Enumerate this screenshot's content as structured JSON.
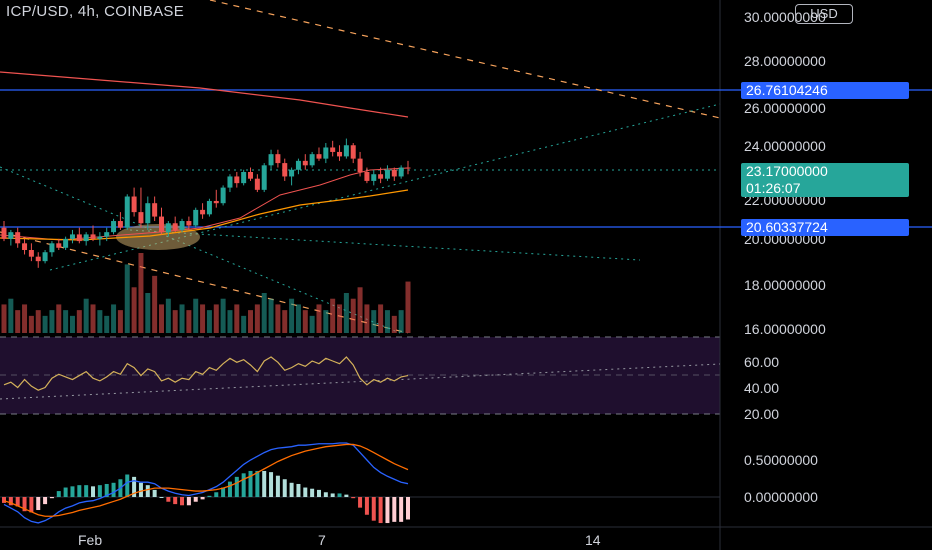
{
  "header": {
    "symbol": "ICP/USD, 4h, COINBASE",
    "currency": "USD"
  },
  "price_axis": {
    "ticks": [
      "30.00000000",
      "28.00000000",
      "26.00000000",
      "24.00000000",
      "22.00000000",
      "20.00000000",
      "18.00000000",
      "16.00000000"
    ]
  },
  "price_labels": {
    "upper_line": "26.76104246",
    "current_price": "23.17000000",
    "countdown": "01:26:07",
    "lower_line": "20.60337724"
  },
  "rsi_axis": {
    "ticks": [
      "60.00",
      "40.00",
      "20.00"
    ]
  },
  "macd_axis": {
    "ticks": [
      "0.50000000",
      "0.00000000"
    ]
  },
  "time_axis": {
    "ticks": [
      "Feb",
      "7",
      "14"
    ]
  },
  "colors": {
    "up": "#26a69a",
    "down": "#ef5350",
    "blue_line": "#2962ff",
    "rsi": "#d4b15a",
    "macd": "#2962ff",
    "signal": "#ff6d00",
    "rsi_band": "#1f0f2e"
  },
  "chart_data": {
    "type": "candlestick",
    "title": "ICP/USD, 4h, COINBASE",
    "ylim": [
      16,
      30
    ],
    "horizontal_levels": [
      26.76104246,
      20.60337724
    ],
    "current_price": 23.17,
    "candles": [
      {
        "o": 20.5,
        "h": 20.8,
        "l": 19.9,
        "c": 20.0
      },
      {
        "o": 20.0,
        "h": 20.4,
        "l": 19.7,
        "c": 20.3
      },
      {
        "o": 20.3,
        "h": 20.5,
        "l": 19.6,
        "c": 19.8
      },
      {
        "o": 19.8,
        "h": 20.0,
        "l": 19.3,
        "c": 19.5
      },
      {
        "o": 19.5,
        "h": 19.8,
        "l": 19.0,
        "c": 19.2
      },
      {
        "o": 19.2,
        "h": 19.4,
        "l": 18.7,
        "c": 19.0
      },
      {
        "o": 19.0,
        "h": 19.5,
        "l": 18.9,
        "c": 19.4
      },
      {
        "o": 19.4,
        "h": 19.9,
        "l": 19.2,
        "c": 19.8
      },
      {
        "o": 19.8,
        "h": 20.0,
        "l": 19.5,
        "c": 19.6
      },
      {
        "o": 19.6,
        "h": 20.1,
        "l": 19.5,
        "c": 20.0
      },
      {
        "o": 20.0,
        "h": 20.4,
        "l": 19.8,
        "c": 20.2
      },
      {
        "o": 20.2,
        "h": 20.5,
        "l": 19.8,
        "c": 19.9
      },
      {
        "o": 19.9,
        "h": 20.3,
        "l": 19.7,
        "c": 20.2
      },
      {
        "o": 20.2,
        "h": 20.6,
        "l": 19.9,
        "c": 20.0
      },
      {
        "o": 20.0,
        "h": 20.3,
        "l": 19.7,
        "c": 20.1
      },
      {
        "o": 20.1,
        "h": 20.5,
        "l": 19.9,
        "c": 20.3
      },
      {
        "o": 20.3,
        "h": 20.9,
        "l": 20.2,
        "c": 20.8
      },
      {
        "o": 20.8,
        "h": 21.2,
        "l": 20.4,
        "c": 20.5
      },
      {
        "o": 20.5,
        "h": 22.0,
        "l": 20.4,
        "c": 21.9
      },
      {
        "o": 21.9,
        "h": 22.3,
        "l": 21.0,
        "c": 21.2
      },
      {
        "o": 21.2,
        "h": 22.3,
        "l": 20.5,
        "c": 20.7
      },
      {
        "o": 20.7,
        "h": 21.9,
        "l": 20.4,
        "c": 21.6
      },
      {
        "o": 21.6,
        "h": 21.9,
        "l": 20.8,
        "c": 21.0
      },
      {
        "o": 21.0,
        "h": 21.4,
        "l": 20.2,
        "c": 20.3
      },
      {
        "o": 20.3,
        "h": 20.8,
        "l": 20.1,
        "c": 20.7
      },
      {
        "o": 20.7,
        "h": 21.0,
        "l": 20.3,
        "c": 20.4
      },
      {
        "o": 20.4,
        "h": 20.9,
        "l": 20.3,
        "c": 20.8
      },
      {
        "o": 20.8,
        "h": 21.0,
        "l": 20.4,
        "c": 20.6
      },
      {
        "o": 20.6,
        "h": 21.4,
        "l": 20.5,
        "c": 21.3
      },
      {
        "o": 21.3,
        "h": 21.6,
        "l": 20.9,
        "c": 21.1
      },
      {
        "o": 21.1,
        "h": 21.8,
        "l": 21.0,
        "c": 21.7
      },
      {
        "o": 21.7,
        "h": 22.2,
        "l": 21.4,
        "c": 21.6
      },
      {
        "o": 21.6,
        "h": 22.4,
        "l": 21.5,
        "c": 22.3
      },
      {
        "o": 22.3,
        "h": 22.9,
        "l": 22.1,
        "c": 22.8
      },
      {
        "o": 22.8,
        "h": 23.0,
        "l": 22.3,
        "c": 22.5
      },
      {
        "o": 22.5,
        "h": 23.1,
        "l": 22.4,
        "c": 23.0
      },
      {
        "o": 23.0,
        "h": 23.2,
        "l": 22.6,
        "c": 22.7
      },
      {
        "o": 22.7,
        "h": 22.9,
        "l": 22.1,
        "c": 22.2
      },
      {
        "o": 22.2,
        "h": 23.4,
        "l": 22.1,
        "c": 23.3
      },
      {
        "o": 23.3,
        "h": 24.0,
        "l": 23.1,
        "c": 23.8
      },
      {
        "o": 23.8,
        "h": 24.0,
        "l": 23.2,
        "c": 23.4
      },
      {
        "o": 23.4,
        "h": 23.6,
        "l": 22.6,
        "c": 22.8
      },
      {
        "o": 22.8,
        "h": 23.2,
        "l": 22.4,
        "c": 23.1
      },
      {
        "o": 23.1,
        "h": 23.6,
        "l": 22.9,
        "c": 23.5
      },
      {
        "o": 23.5,
        "h": 23.8,
        "l": 23.1,
        "c": 23.3
      },
      {
        "o": 23.3,
        "h": 23.9,
        "l": 23.2,
        "c": 23.8
      },
      {
        "o": 23.8,
        "h": 24.1,
        "l": 23.5,
        "c": 23.6
      },
      {
        "o": 23.6,
        "h": 24.3,
        "l": 23.4,
        "c": 24.1
      },
      {
        "o": 24.1,
        "h": 24.4,
        "l": 23.7,
        "c": 23.9
      },
      {
        "o": 23.9,
        "h": 24.2,
        "l": 23.5,
        "c": 23.7
      },
      {
        "o": 23.7,
        "h": 24.5,
        "l": 23.6,
        "c": 24.2
      },
      {
        "o": 24.2,
        "h": 24.3,
        "l": 23.4,
        "c": 23.6
      },
      {
        "o": 23.6,
        "h": 23.9,
        "l": 22.8,
        "c": 23.0
      },
      {
        "o": 23.0,
        "h": 23.2,
        "l": 22.5,
        "c": 22.6
      },
      {
        "o": 22.6,
        "h": 23.1,
        "l": 22.4,
        "c": 22.9
      },
      {
        "o": 22.9,
        "h": 23.2,
        "l": 22.5,
        "c": 22.7
      },
      {
        "o": 22.7,
        "h": 23.3,
        "l": 22.6,
        "c": 23.1
      },
      {
        "o": 23.1,
        "h": 23.2,
        "l": 22.6,
        "c": 22.8
      },
      {
        "o": 22.8,
        "h": 23.3,
        "l": 22.7,
        "c": 23.2
      },
      {
        "o": 23.2,
        "h": 23.5,
        "l": 22.9,
        "c": 23.17
      }
    ],
    "volume": [
      5,
      6,
      4,
      5,
      3,
      4,
      3,
      4,
      5,
      4,
      3,
      4,
      6,
      5,
      4,
      3,
      5,
      4,
      12,
      8,
      14,
      7,
      10,
      5,
      6,
      4,
      5,
      4,
      6,
      5,
      4,
      5,
      6,
      4,
      5,
      3,
      4,
      5,
      7,
      6,
      5,
      4,
      6,
      5,
      4,
      3,
      5,
      4,
      6,
      5,
      7,
      6,
      8,
      5,
      4,
      5,
      4,
      3,
      4,
      9
    ],
    "rsi": [
      42,
      44,
      40,
      46,
      41,
      38,
      40,
      47,
      50,
      48,
      46,
      49,
      52,
      47,
      45,
      48,
      52,
      50,
      58,
      55,
      49,
      54,
      52,
      45,
      47,
      44,
      47,
      46,
      52,
      50,
      55,
      53,
      58,
      62,
      59,
      61,
      57,
      52,
      60,
      63,
      59,
      53,
      55,
      58,
      56,
      60,
      58,
      62,
      60,
      58,
      63,
      57,
      47,
      42,
      46,
      44,
      47,
      45,
      48,
      49
    ],
    "macd": [
      -0.1,
      -0.15,
      -0.2,
      -0.28,
      -0.33,
      -0.35,
      -0.32,
      -0.27,
      -0.2,
      -0.15,
      -0.12,
      -0.08,
      -0.06,
      -0.05,
      -0.02,
      0.02,
      0.06,
      0.12,
      0.2,
      0.22,
      0.2,
      0.2,
      0.18,
      0.12,
      0.08,
      0.05,
      0.03,
      0.02,
      0.04,
      0.06,
      0.1,
      0.14,
      0.2,
      0.28,
      0.36,
      0.44,
      0.5,
      0.55,
      0.6,
      0.64,
      0.66,
      0.67,
      0.68,
      0.7,
      0.7,
      0.71,
      0.72,
      0.72,
      0.72,
      0.73,
      0.73,
      0.7,
      0.6,
      0.5,
      0.4,
      0.33,
      0.28,
      0.24,
      0.2,
      0.18
    ],
    "signal": [
      -0.05,
      -0.08,
      -0.12,
      -0.16,
      -0.2,
      -0.24,
      -0.26,
      -0.26,
      -0.25,
      -0.23,
      -0.21,
      -0.18,
      -0.16,
      -0.14,
      -0.12,
      -0.09,
      -0.06,
      -0.03,
      0.01,
      0.05,
      0.08,
      0.1,
      0.12,
      0.12,
      0.12,
      0.11,
      0.1,
      0.09,
      0.08,
      0.08,
      0.09,
      0.1,
      0.12,
      0.15,
      0.19,
      0.24,
      0.28,
      0.33,
      0.38,
      0.43,
      0.48,
      0.52,
      0.56,
      0.59,
      0.62,
      0.64,
      0.66,
      0.68,
      0.69,
      0.7,
      0.71,
      0.71,
      0.69,
      0.65,
      0.6,
      0.55,
      0.5,
      0.45,
      0.41,
      0.37
    ]
  }
}
